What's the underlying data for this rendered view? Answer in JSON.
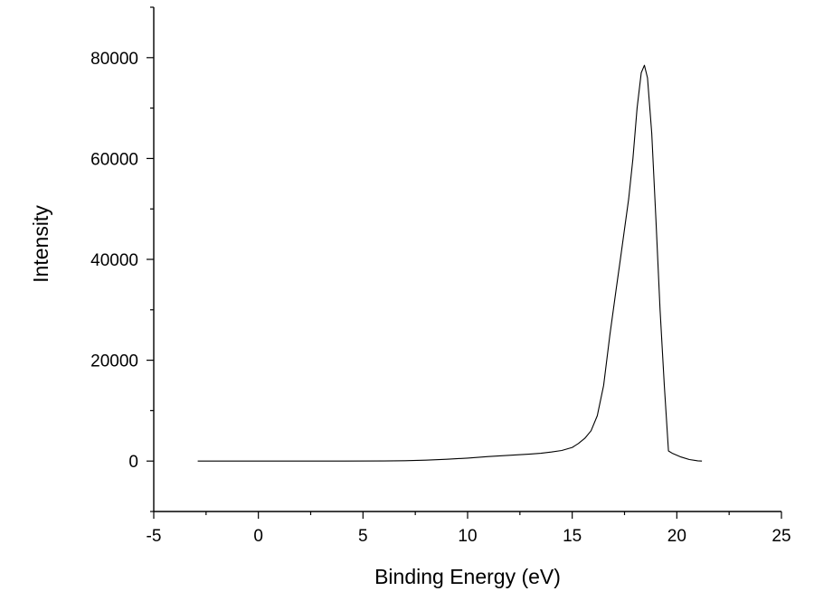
{
  "chart_data": {
    "type": "line",
    "title": "",
    "xlabel": "Binding Energy (eV)",
    "ylabel": "Intensity",
    "xlim": [
      -5,
      25
    ],
    "ylim": [
      -10000,
      90000
    ],
    "x_ticks": [
      -5,
      0,
      5,
      10,
      15,
      20,
      25
    ],
    "x_tick_labels": [
      "-5",
      "0",
      "5",
      "10",
      "15",
      "20",
      "25"
    ],
    "y_ticks": [
      0,
      20000,
      40000,
      60000,
      80000
    ],
    "y_tick_labels": [
      "0",
      "20000",
      "40000",
      "60000",
      "80000"
    ],
    "grid": false,
    "legend": "none",
    "line_color": "#000000",
    "series": [
      {
        "x": [
          -2.9,
          0,
          2,
          4,
          6,
          7,
          8,
          9,
          10,
          11,
          12,
          13,
          13.5,
          14,
          14.5,
          15,
          15.3,
          15.6,
          15.9,
          16.2,
          16.5,
          16.8,
          17.1,
          17.3,
          17.5,
          17.7,
          17.9,
          18.1,
          18.3,
          18.45,
          18.6,
          18.8,
          19.0,
          19.2,
          19.4,
          19.6,
          19.8,
          20.2,
          20.6,
          21.0,
          21.2
        ],
        "y": [
          0,
          0,
          0,
          0,
          20,
          80,
          180,
          350,
          600,
          900,
          1150,
          1400,
          1550,
          1800,
          2100,
          2700,
          3500,
          4500,
          6000,
          9000,
          15000,
          25000,
          34000,
          40000,
          46000,
          52000,
          60000,
          70000,
          77000,
          78500,
          76000,
          65000,
          48000,
          30000,
          15000,
          2000,
          1500,
          800,
          300,
          50,
          0
        ]
      }
    ]
  }
}
